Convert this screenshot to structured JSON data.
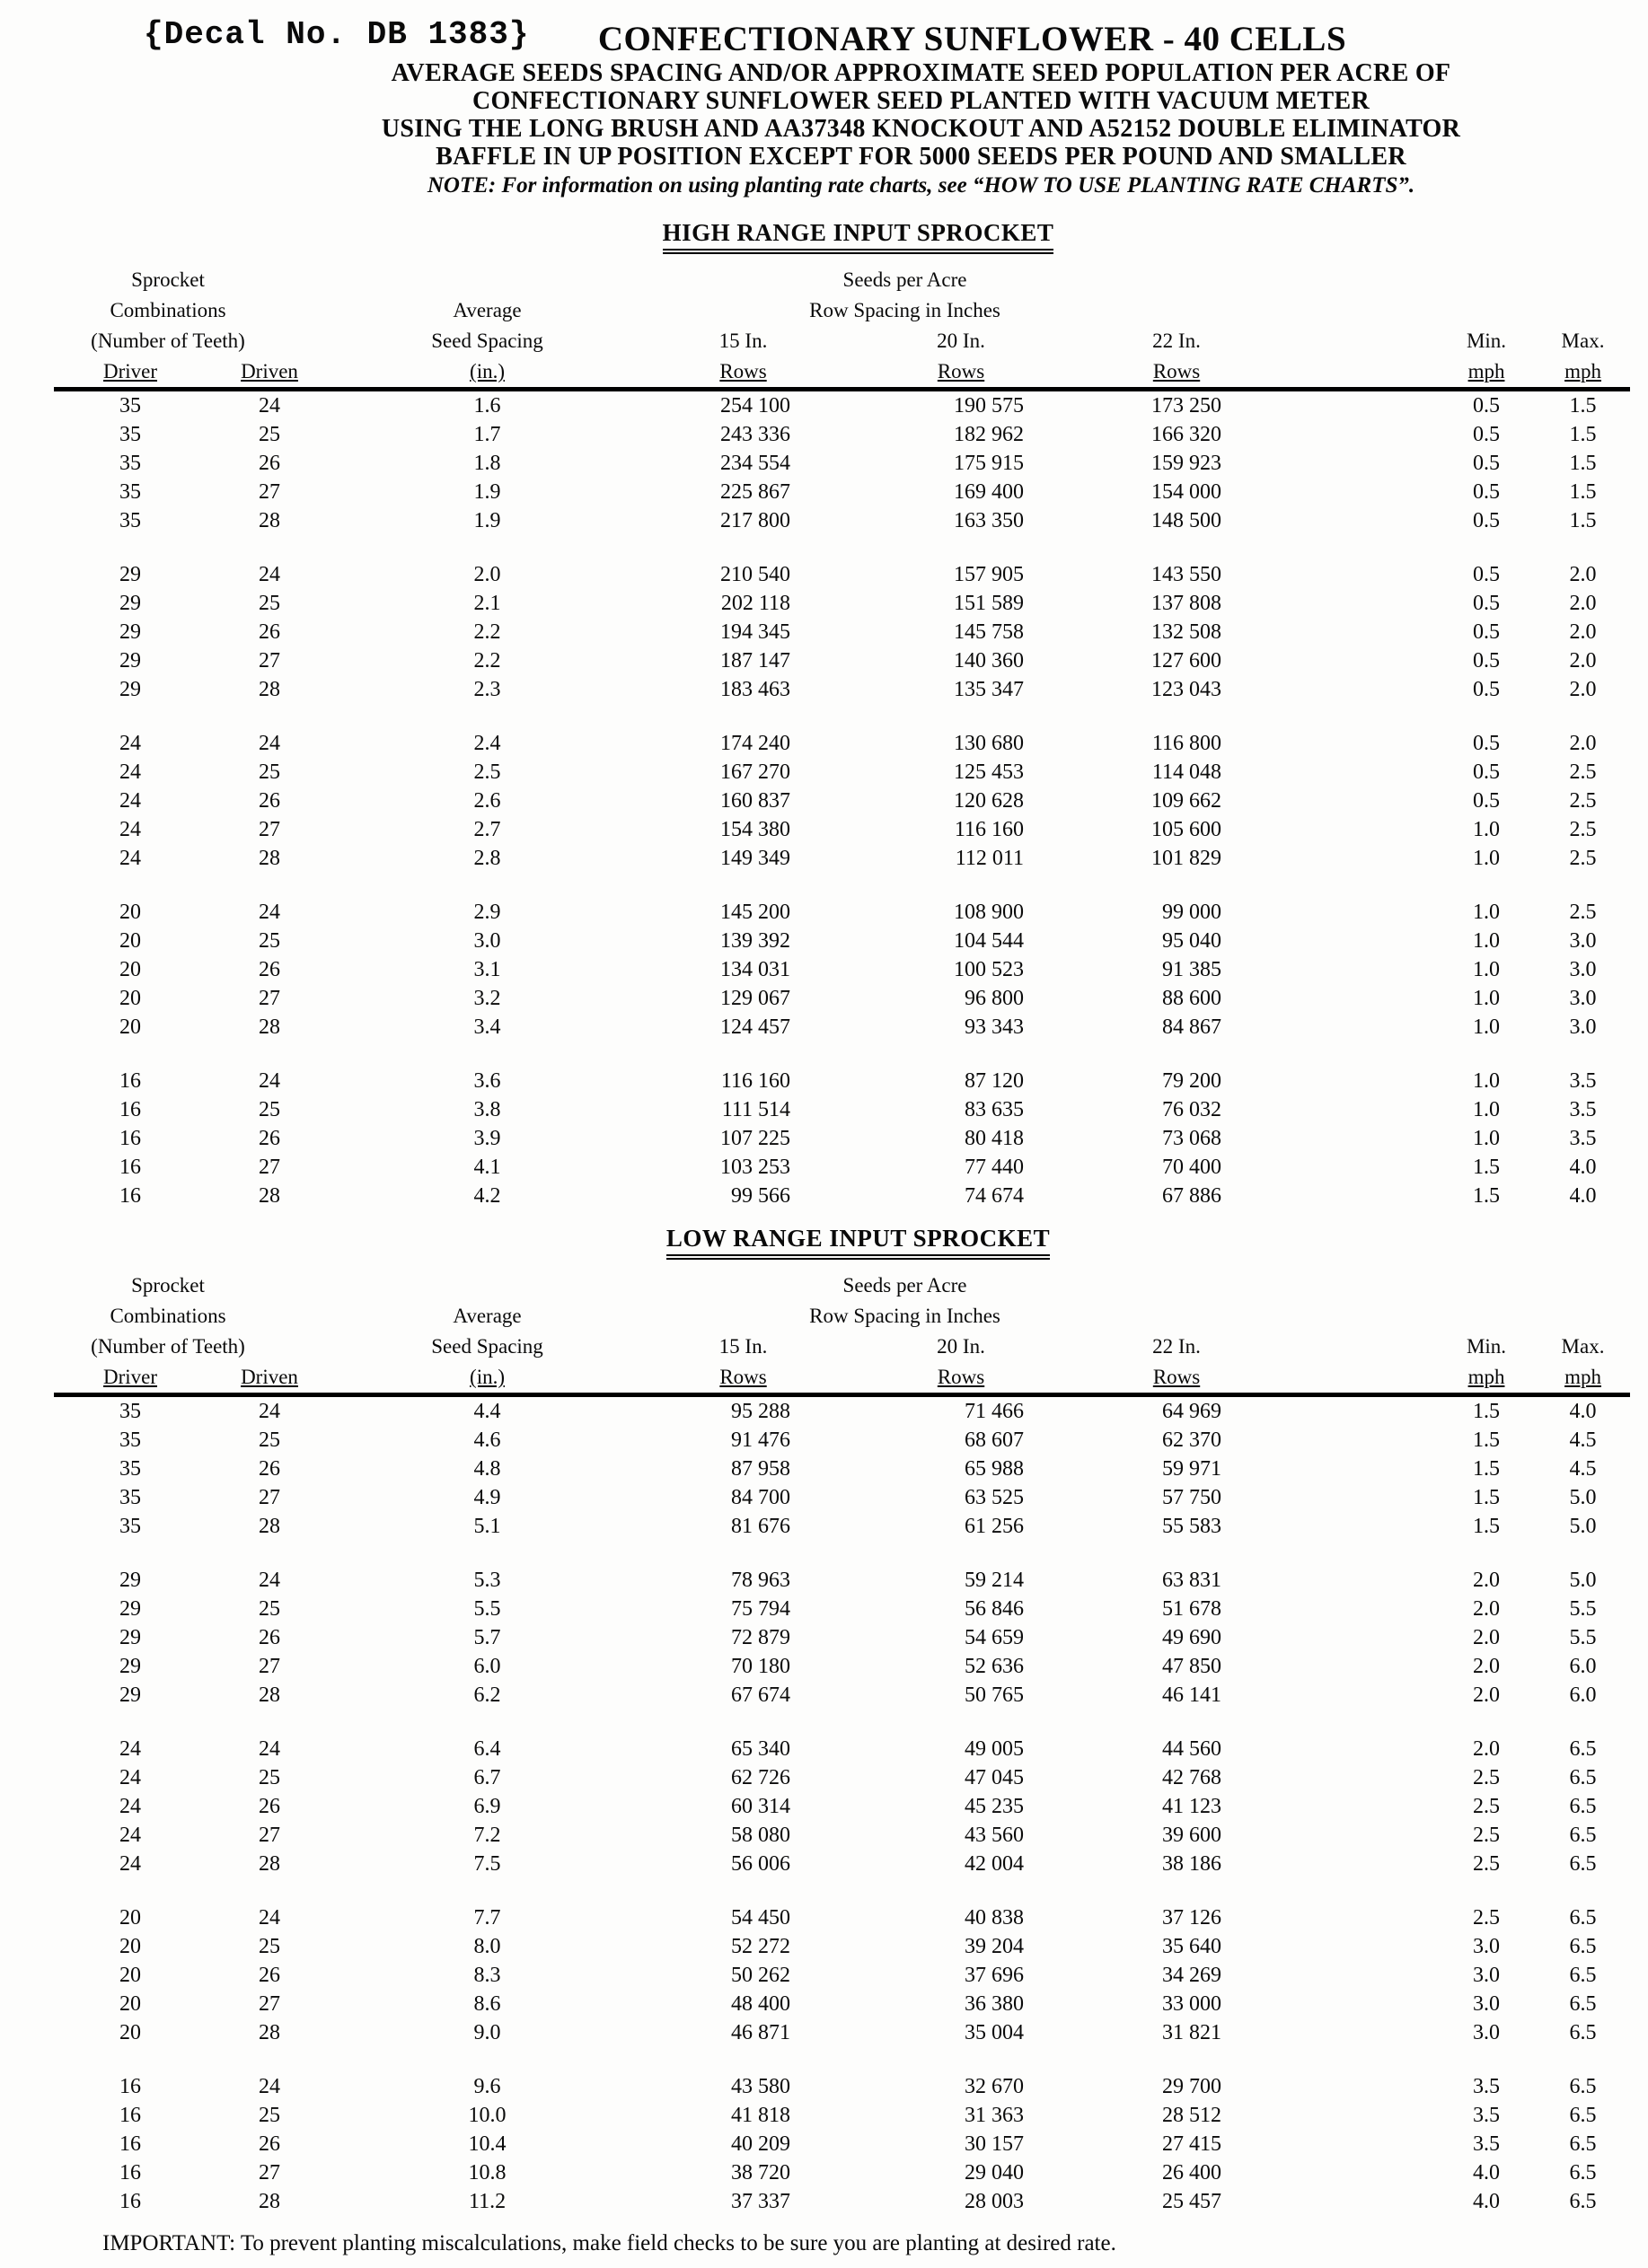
{
  "page": {
    "decal": "{Decal No. DB 1383}",
    "title": "CONFECTIONARY SUNFLOWER - 40 CELLS",
    "subtitle_lines": [
      "AVERAGE SEEDS SPACING AND/OR APPROXIMATE SEED POPULATION PER ACRE OF",
      "CONFECTIONARY SUNFLOWER SEED PLANTED WITH VACUUM METER",
      "USING THE LONG BRUSH AND AA37348 KNOCKOUT AND A52152 DOUBLE ELIMINATOR",
      "BAFFLE IN UP POSITION EXCEPT FOR 5000 SEEDS PER POUND AND SMALLER"
    ],
    "note": "NOTE: For information on using planting rate charts, see “HOW TO USE PLANTING RATE CHARTS”.",
    "footer": "IMPORTANT: To prevent planting miscalculations, make field checks to be sure you are planting at desired rate."
  },
  "table_header": {
    "sprocket_l1": "Sprocket",
    "sprocket_l2": "Combinations",
    "sprocket_l3": "(Number of Teeth)",
    "driver": "Driver",
    "driven": "Driven",
    "average_l1": "Average",
    "average_l2": "Seed Spacing",
    "average_l3": "(in.)",
    "seeds_l1": "Seeds per Acre",
    "seeds_l2": "Row Spacing in Inches",
    "col_15": "15 In.",
    "col_20": "20 In.",
    "col_22": "22 In.",
    "rows": "Rows",
    "min": "Min.",
    "max": "Max.",
    "mph": "mph"
  },
  "tables": [
    {
      "title": "HIGH RANGE INPUT SPROCKET",
      "groups": [
        [
          [
            "35",
            "24",
            "1.6",
            "254 100",
            "190 575",
            "173 250",
            "0.5",
            "1.5"
          ],
          [
            "35",
            "25",
            "1.7",
            "243 336",
            "182 962",
            "166 320",
            "0.5",
            "1.5"
          ],
          [
            "35",
            "26",
            "1.8",
            "234 554",
            "175 915",
            "159 923",
            "0.5",
            "1.5"
          ],
          [
            "35",
            "27",
            "1.9",
            "225 867",
            "169 400",
            "154 000",
            "0.5",
            "1.5"
          ],
          [
            "35",
            "28",
            "1.9",
            "217 800",
            "163 350",
            "148 500",
            "0.5",
            "1.5"
          ]
        ],
        [
          [
            "29",
            "24",
            "2.0",
            "210 540",
            "157 905",
            "143 550",
            "0.5",
            "2.0"
          ],
          [
            "29",
            "25",
            "2.1",
            "202 118",
            "151 589",
            "137 808",
            "0.5",
            "2.0"
          ],
          [
            "29",
            "26",
            "2.2",
            "194 345",
            "145 758",
            "132 508",
            "0.5",
            "2.0"
          ],
          [
            "29",
            "27",
            "2.2",
            "187 147",
            "140 360",
            "127 600",
            "0.5",
            "2.0"
          ],
          [
            "29",
            "28",
            "2.3",
            "183 463",
            "135 347",
            "123 043",
            "0.5",
            "2.0"
          ]
        ],
        [
          [
            "24",
            "24",
            "2.4",
            "174 240",
            "130 680",
            "116 800",
            "0.5",
            "2.0"
          ],
          [
            "24",
            "25",
            "2.5",
            "167 270",
            "125 453",
            "114 048",
            "0.5",
            "2.5"
          ],
          [
            "24",
            "26",
            "2.6",
            "160 837",
            "120 628",
            "109 662",
            "0.5",
            "2.5"
          ],
          [
            "24",
            "27",
            "2.7",
            "154 380",
            "116 160",
            "105 600",
            "1.0",
            "2.5"
          ],
          [
            "24",
            "28",
            "2.8",
            "149 349",
            "112 011",
            "101 829",
            "1.0",
            "2.5"
          ]
        ],
        [
          [
            "20",
            "24",
            "2.9",
            "145 200",
            "108 900",
            "99 000",
            "1.0",
            "2.5"
          ],
          [
            "20",
            "25",
            "3.0",
            "139 392",
            "104 544",
            "95 040",
            "1.0",
            "3.0"
          ],
          [
            "20",
            "26",
            "3.1",
            "134 031",
            "100 523",
            "91 385",
            "1.0",
            "3.0"
          ],
          [
            "20",
            "27",
            "3.2",
            "129 067",
            "96 800",
            "88 600",
            "1.0",
            "3.0"
          ],
          [
            "20",
            "28",
            "3.4",
            "124 457",
            "93 343",
            "84 867",
            "1.0",
            "3.0"
          ]
        ],
        [
          [
            "16",
            "24",
            "3.6",
            "116 160",
            "87 120",
            "79 200",
            "1.0",
            "3.5"
          ],
          [
            "16",
            "25",
            "3.8",
            "111 514",
            "83 635",
            "76 032",
            "1.0",
            "3.5"
          ],
          [
            "16",
            "26",
            "3.9",
            "107 225",
            "80 418",
            "73 068",
            "1.0",
            "3.5"
          ],
          [
            "16",
            "27",
            "4.1",
            "103 253",
            "77 440",
            "70 400",
            "1.5",
            "4.0"
          ],
          [
            "16",
            "28",
            "4.2",
            "99 566",
            "74 674",
            "67 886",
            "1.5",
            "4.0"
          ]
        ]
      ]
    },
    {
      "title": "LOW RANGE INPUT SPROCKET",
      "groups": [
        [
          [
            "35",
            "24",
            "4.4",
            "95 288",
            "71 466",
            "64 969",
            "1.5",
            "4.0"
          ],
          [
            "35",
            "25",
            "4.6",
            "91 476",
            "68 607",
            "62 370",
            "1.5",
            "4.5"
          ],
          [
            "35",
            "26",
            "4.8",
            "87 958",
            "65 988",
            "59 971",
            "1.5",
            "4.5"
          ],
          [
            "35",
            "27",
            "4.9",
            "84 700",
            "63 525",
            "57 750",
            "1.5",
            "5.0"
          ],
          [
            "35",
            "28",
            "5.1",
            "81 676",
            "61 256",
            "55 583",
            "1.5",
            "5.0"
          ]
        ],
        [
          [
            "29",
            "24",
            "5.3",
            "78 963",
            "59 214",
            "63 831",
            "2.0",
            "5.0"
          ],
          [
            "29",
            "25",
            "5.5",
            "75 794",
            "56 846",
            "51 678",
            "2.0",
            "5.5"
          ],
          [
            "29",
            "26",
            "5.7",
            "72 879",
            "54 659",
            "49 690",
            "2.0",
            "5.5"
          ],
          [
            "29",
            "27",
            "6.0",
            "70 180",
            "52 636",
            "47 850",
            "2.0",
            "6.0"
          ],
          [
            "29",
            "28",
            "6.2",
            "67 674",
            "50 765",
            "46 141",
            "2.0",
            "6.0"
          ]
        ],
        [
          [
            "24",
            "24",
            "6.4",
            "65 340",
            "49 005",
            "44 560",
            "2.0",
            "6.5"
          ],
          [
            "24",
            "25",
            "6.7",
            "62 726",
            "47 045",
            "42 768",
            "2.5",
            "6.5"
          ],
          [
            "24",
            "26",
            "6.9",
            "60 314",
            "45 235",
            "41 123",
            "2.5",
            "6.5"
          ],
          [
            "24",
            "27",
            "7.2",
            "58 080",
            "43 560",
            "39 600",
            "2.5",
            "6.5"
          ],
          [
            "24",
            "28",
            "7.5",
            "56 006",
            "42 004",
            "38 186",
            "2.5",
            "6.5"
          ]
        ],
        [
          [
            "20",
            "24",
            "7.7",
            "54 450",
            "40 838",
            "37 126",
            "2.5",
            "6.5"
          ],
          [
            "20",
            "25",
            "8.0",
            "52 272",
            "39 204",
            "35 640",
            "3.0",
            "6.5"
          ],
          [
            "20",
            "26",
            "8.3",
            "50 262",
            "37 696",
            "34 269",
            "3.0",
            "6.5"
          ],
          [
            "20",
            "27",
            "8.6",
            "48 400",
            "36 380",
            "33 000",
            "3.0",
            "6.5"
          ],
          [
            "20",
            "28",
            "9.0",
            "46 871",
            "35 004",
            "31 821",
            "3.0",
            "6.5"
          ]
        ],
        [
          [
            "16",
            "24",
            "9.6",
            "43 580",
            "32 670",
            "29 700",
            "3.5",
            "6.5"
          ],
          [
            "16",
            "25",
            "10.0",
            "41 818",
            "31 363",
            "28 512",
            "3.5",
            "6.5"
          ],
          [
            "16",
            "26",
            "10.4",
            "40 209",
            "30 157",
            "27 415",
            "3.5",
            "6.5"
          ],
          [
            "16",
            "27",
            "10.8",
            "38 720",
            "29 040",
            "26 400",
            "4.0",
            "6.5"
          ],
          [
            "16",
            "28",
            "11.2",
            "37 337",
            "28 003",
            "25 457",
            "4.0",
            "6.5"
          ]
        ]
      ]
    }
  ]
}
